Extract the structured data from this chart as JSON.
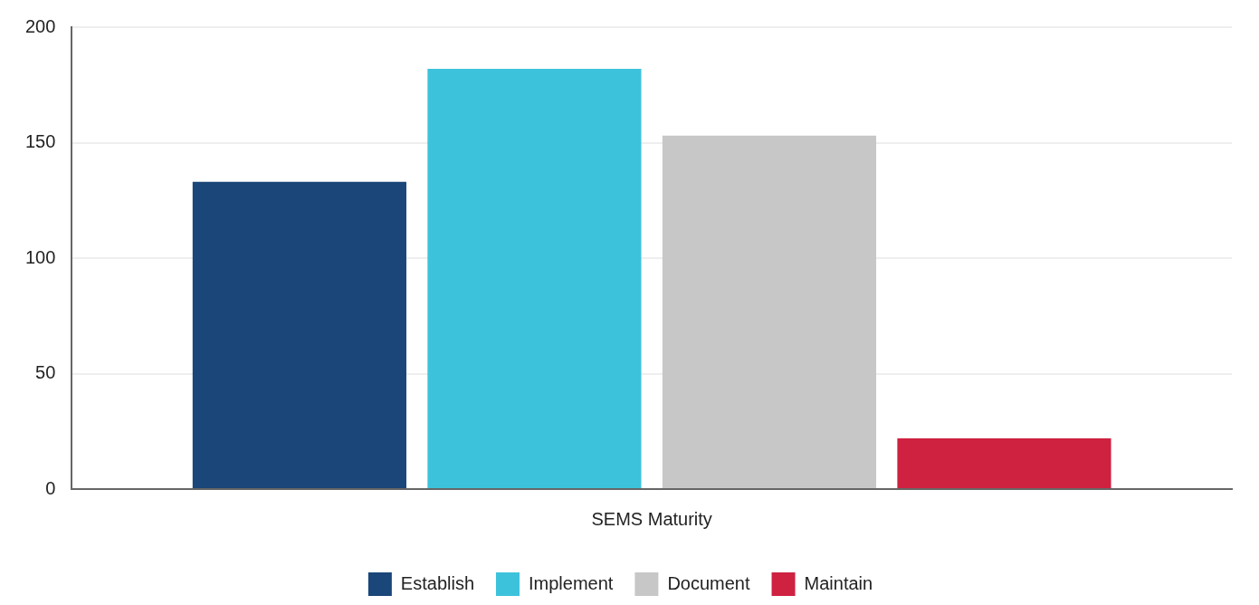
{
  "chart_data": {
    "type": "bar",
    "categories": [
      "SEMS Maturity"
    ],
    "series": [
      {
        "name": "Establish",
        "color": "#1a4679",
        "values": [
          133
        ]
      },
      {
        "name": "Implement",
        "color": "#3dc2db",
        "values": [
          182
        ]
      },
      {
        "name": "Document",
        "color": "#c6c7c6",
        "values": [
          153
        ]
      },
      {
        "name": "Maintain",
        "color": "#cf2140",
        "values": [
          22
        ]
      }
    ],
    "ylim": [
      0,
      200
    ],
    "yticks": [
      0,
      50,
      100,
      150,
      200
    ],
    "grid": "y",
    "legend": "bottom"
  }
}
